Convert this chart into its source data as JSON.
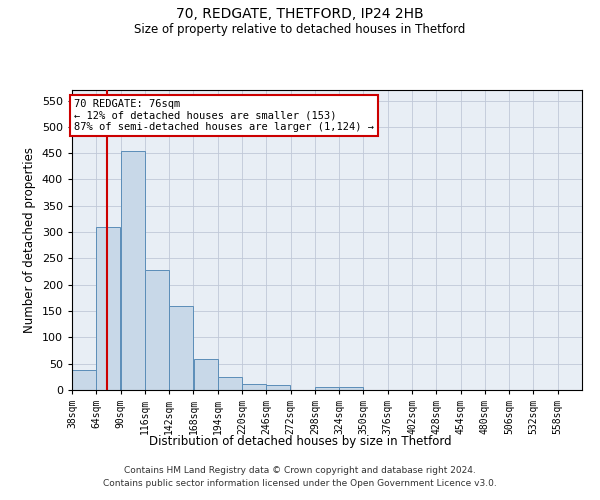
{
  "title1": "70, REDGATE, THETFORD, IP24 2HB",
  "title2": "Size of property relative to detached houses in Thetford",
  "xlabel": "Distribution of detached houses by size in Thetford",
  "ylabel": "Number of detached properties",
  "footnote1": "Contains HM Land Registry data © Crown copyright and database right 2024.",
  "footnote2": "Contains public sector information licensed under the Open Government Licence v3.0.",
  "bar_left_edges": [
    38,
    64,
    90,
    116,
    142,
    168,
    194,
    220,
    246,
    272,
    298,
    324,
    350,
    376,
    402,
    428,
    454,
    480,
    506,
    532
  ],
  "bar_heights": [
    38,
    310,
    455,
    228,
    160,
    58,
    25,
    12,
    10,
    0,
    5,
    5,
    0,
    0,
    0,
    0,
    0,
    0,
    0,
    0
  ],
  "bin_width": 26,
  "bar_color": "#c8d8e8",
  "bar_edge_color": "#5b8db8",
  "plot_bg_color": "#e8eef5",
  "grid_color": "#c0c8d8",
  "property_size": 76,
  "property_line_color": "#cc0000",
  "annotation_text": "70 REDGATE: 76sqm\n← 12% of detached houses are smaller (153)\n87% of semi-detached houses are larger (1,124) →",
  "annotation_box_color": "#cc0000",
  "ylim": [
    0,
    570
  ],
  "yticks": [
    0,
    50,
    100,
    150,
    200,
    250,
    300,
    350,
    400,
    450,
    500,
    550
  ],
  "x_tick_labels": [
    "38sqm",
    "64sqm",
    "90sqm",
    "116sqm",
    "142sqm",
    "168sqm",
    "194sqm",
    "220sqm",
    "246sqm",
    "272sqm",
    "298sqm",
    "324sqm",
    "350sqm",
    "376sqm",
    "402sqm",
    "428sqm",
    "454sqm",
    "480sqm",
    "506sqm",
    "532sqm",
    "558sqm"
  ],
  "x_tick_positions": [
    38,
    64,
    90,
    116,
    142,
    168,
    194,
    220,
    246,
    272,
    298,
    324,
    350,
    376,
    402,
    428,
    454,
    480,
    506,
    532,
    558
  ],
  "fig_width": 6.0,
  "fig_height": 5.0,
  "background_color": "#ffffff"
}
